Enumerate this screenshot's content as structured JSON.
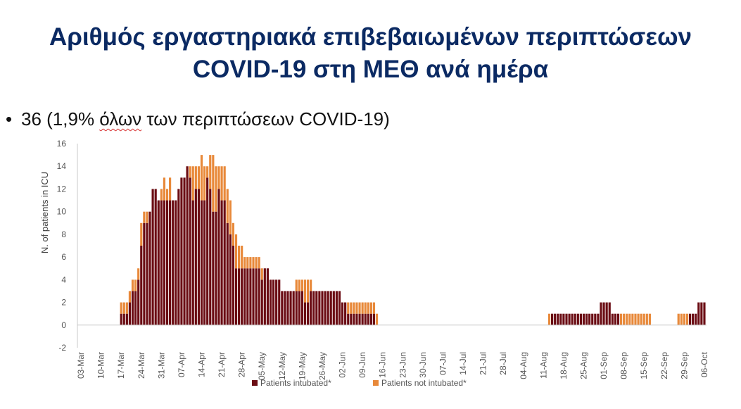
{
  "slide": {
    "title_line1": "Αριθμός εργαστηριακά επιβεβαιωμένων περιπτώσεων",
    "title_line2": "COVID-19 στη ΜΕΘ ανά ημέρα",
    "bullet_symbol": "•",
    "bullet_prefix": "36 (1,9% ",
    "bullet_word": "όλων",
    "bullet_suffix": " των περιπτώσεων COVID-19)"
  },
  "colors": {
    "intubated": "#6b0d14",
    "not_intubated": "#e8893a",
    "axis": "#c8c8c8",
    "text": "#555555"
  },
  "chart_data": {
    "type": "bar",
    "stacked": true,
    "title": "",
    "xlabel": "",
    "ylabel": "N. of patients in ICU",
    "ylim": [
      -2,
      16
    ],
    "yticks": [
      -2,
      0,
      2,
      4,
      6,
      8,
      10,
      12,
      14,
      16
    ],
    "grid": false,
    "legend": "bottom",
    "day_count": 218,
    "x_tick_labels": [
      "03-Mar",
      "10-Mar",
      "17-Mar",
      "24-Mar",
      "31-Mar",
      "07-Apr",
      "14-Apr",
      "21-Apr",
      "28-Apr",
      "05-May",
      "12-May",
      "19-May",
      "26-May",
      "02-Jun",
      "09-Jun",
      "16-Jun",
      "23-Jun",
      "30-Jun",
      "07-Jul",
      "14-Jul",
      "21-Jul",
      "28-Jul",
      "04-Aug",
      "11-Aug",
      "18-Aug",
      "25-Aug",
      "01-Sep",
      "08-Sep",
      "15-Sep",
      "22-Sep",
      "29-Sep",
      "06-Oct"
    ],
    "series": [
      {
        "name": "Patients intubated*",
        "values": [
          0,
          0,
          0,
          0,
          0,
          0,
          0,
          0,
          0,
          0,
          0,
          0,
          0,
          0,
          1,
          1,
          1,
          2,
          3,
          3,
          4,
          7,
          9,
          9,
          10,
          12,
          12,
          11,
          11,
          11,
          11,
          11,
          11,
          11,
          12,
          13,
          13,
          14,
          13,
          11,
          12,
          12,
          11,
          11,
          13,
          12,
          10,
          10,
          12,
          11,
          11,
          9,
          8,
          7,
          5,
          5,
          5,
          5,
          5,
          5,
          5,
          5,
          5,
          4,
          5,
          5,
          4,
          4,
          4,
          4,
          3,
          3,
          3,
          3,
          3,
          3,
          3,
          3,
          2,
          2,
          3,
          3,
          3,
          3,
          3,
          3,
          3,
          3,
          3,
          3,
          3,
          2,
          2,
          1,
          1,
          1,
          1,
          1,
          1,
          1,
          1,
          1,
          1,
          0,
          0,
          0,
          0,
          0,
          0,
          0,
          0,
          0,
          0,
          0,
          0,
          0,
          0,
          0,
          0,
          0,
          0,
          0,
          0,
          0,
          0,
          0,
          0,
          0,
          0,
          0,
          0,
          0,
          0,
          0,
          0,
          0,
          0,
          0,
          0,
          0,
          0,
          0,
          0,
          0,
          0,
          0,
          0,
          0,
          0,
          0,
          0,
          0,
          0,
          0,
          0,
          0,
          0,
          0,
          0,
          0,
          0,
          0,
          0,
          0,
          1,
          1,
          1,
          1,
          1,
          1,
          1,
          1,
          1,
          1,
          1,
          1,
          1,
          1,
          1,
          1,
          1,
          2,
          2,
          2,
          2,
          1,
          1,
          1,
          0,
          0,
          0,
          0,
          0,
          0,
          0,
          0,
          0,
          0,
          0,
          0,
          0,
          0,
          0,
          0,
          0,
          0,
          0,
          0,
          0,
          0,
          0,
          0,
          1,
          1,
          1,
          2,
          2,
          2
        ]
      },
      {
        "name": "Patients not intubated*",
        "values": [
          0,
          0,
          0,
          0,
          0,
          0,
          0,
          0,
          0,
          0,
          0,
          0,
          0,
          0,
          1,
          1,
          1,
          1,
          1,
          1,
          1,
          2,
          1,
          1,
          0,
          0,
          0,
          0,
          1,
          2,
          1,
          2,
          0,
          0,
          0,
          0,
          0,
          0,
          1,
          3,
          2,
          2,
          4,
          3,
          1,
          3,
          5,
          4,
          2,
          3,
          3,
          3,
          3,
          2,
          3,
          2,
          2,
          1,
          1,
          1,
          1,
          1,
          1,
          1,
          0,
          0,
          0,
          0,
          0,
          0,
          0,
          0,
          0,
          0,
          0,
          1,
          1,
          1,
          2,
          2,
          1,
          0,
          0,
          0,
          0,
          0,
          0,
          0,
          0,
          0,
          0,
          0,
          0,
          1,
          1,
          1,
          1,
          1,
          1,
          1,
          1,
          1,
          1,
          1,
          0,
          0,
          0,
          0,
          0,
          0,
          0,
          0,
          0,
          0,
          0,
          0,
          0,
          0,
          0,
          0,
          0,
          0,
          0,
          0,
          0,
          0,
          0,
          0,
          0,
          0,
          0,
          0,
          0,
          0,
          0,
          0,
          0,
          0,
          0,
          0,
          0,
          0,
          0,
          0,
          0,
          0,
          0,
          0,
          0,
          0,
          0,
          0,
          0,
          0,
          0,
          0,
          0,
          0,
          0,
          0,
          0,
          0,
          0,
          1,
          0,
          0,
          0,
          0,
          0,
          0,
          0,
          0,
          0,
          0,
          0,
          0,
          0,
          0,
          0,
          0,
          0,
          0,
          0,
          0,
          0,
          0,
          0,
          0,
          1,
          1,
          1,
          1,
          1,
          1,
          1,
          1,
          1,
          1,
          1,
          0,
          0,
          0,
          0,
          0,
          0,
          0,
          0,
          0,
          1,
          1,
          1,
          1,
          0,
          0,
          0,
          0,
          0,
          0
        ]
      }
    ]
  }
}
